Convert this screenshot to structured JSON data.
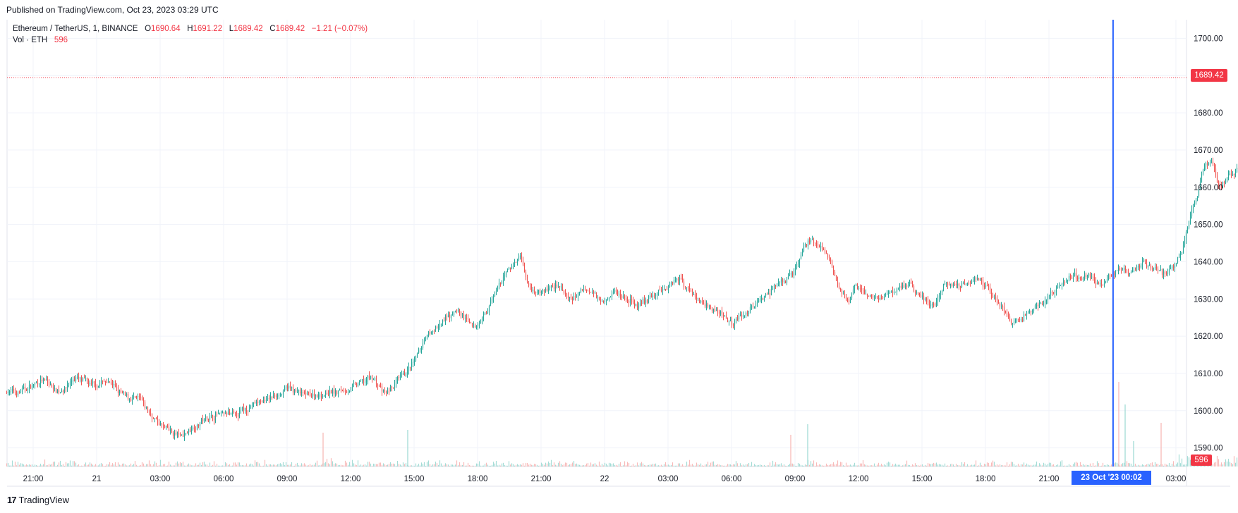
{
  "header": {
    "published": "Published on TradingView.com, Oct 23, 2023 03:29 UTC"
  },
  "legend": {
    "symbol": "Ethereum / TetherUS, 1, BINANCE",
    "open_label": "O",
    "open": "1690.64",
    "high_label": "H",
    "high": "1691.22",
    "low_label": "L",
    "low": "1689.42",
    "close_label": "C",
    "close": "1689.42",
    "change": "−1.21 (−0.07%)",
    "volume_label": "Vol · ETH",
    "volume": "596"
  },
  "price_label": "1689.42",
  "volume_label": "596",
  "crosshair_time_label": "23 Oct '23   00:02",
  "footer": {
    "brand": "TradingView",
    "mark": "17"
  },
  "colors": {
    "up": "#26a69a",
    "down": "#ef5350",
    "crosshair": "#2962ff",
    "last_price": "#f23645",
    "grid": "#f0f3fa"
  },
  "chart_data": {
    "type": "candlestick",
    "title": "Ethereum / TetherUS, 1, BINANCE",
    "ylim": [
      1585,
      1705
    ],
    "y_ticks": [
      1590,
      1600,
      1610,
      1620,
      1630,
      1640,
      1650,
      1660,
      1670,
      1680,
      1690,
      1700
    ],
    "y_tick_labels": [
      "1590.00",
      "1600.00",
      "1610.00",
      "1620.00",
      "1630.00",
      "1640.00",
      "1650.00",
      "1660.00",
      "1670.00",
      "1680.00",
      "1690.00",
      "1700.00"
    ],
    "x_tick_labels": [
      "21:00",
      "21",
      "03:00",
      "06:00",
      "09:00",
      "12:00",
      "15:00",
      "18:00",
      "21:00",
      "22",
      "03:00",
      "06:00",
      "09:00",
      "12:00",
      "15:00",
      "18:00",
      "21:00",
      "23 Oct '23",
      "03:00"
    ],
    "x_tick_hours": [
      0,
      3,
      6,
      9,
      12,
      15,
      18,
      21,
      24,
      27,
      30,
      33,
      36,
      39,
      42,
      45,
      48,
      51,
      54
    ],
    "time_span_hours": 55.1,
    "crosshair_hour": 51.03,
    "last_price": 1689.42,
    "price_path": [
      [
        -0.8,
        1605
      ],
      [
        0.5,
        1608
      ],
      [
        1.2,
        1605
      ],
      [
        2.0,
        1609
      ],
      [
        2.8,
        1607
      ],
      [
        3.5,
        1608
      ],
      [
        4.2,
        1604
      ],
      [
        5.0,
        1603
      ],
      [
        5.5,
        1599
      ],
      [
        6.0,
        1596
      ],
      [
        6.6,
        1594
      ],
      [
        7.0,
        1593
      ],
      [
        7.8,
        1597
      ],
      [
        8.6,
        1599
      ],
      [
        9.5,
        1599
      ],
      [
        10.2,
        1601
      ],
      [
        11.0,
        1603
      ],
      [
        12.0,
        1606
      ],
      [
        13.0,
        1604
      ],
      [
        14.2,
        1605
      ],
      [
        15.0,
        1606
      ],
      [
        15.5,
        1608
      ],
      [
        16.0,
        1609
      ],
      [
        16.6,
        1604
      ],
      [
        17.5,
        1610
      ],
      [
        18.0,
        1613
      ],
      [
        18.5,
        1620
      ],
      [
        19.2,
        1623
      ],
      [
        20.0,
        1627
      ],
      [
        20.8,
        1622
      ],
      [
        21.5,
        1628
      ],
      [
        22.3,
        1637
      ],
      [
        23.0,
        1642
      ],
      [
        23.4,
        1633
      ],
      [
        24.0,
        1632
      ],
      [
        24.8,
        1634
      ],
      [
        25.3,
        1629
      ],
      [
        26.0,
        1633
      ],
      [
        26.8,
        1630
      ],
      [
        27.5,
        1632
      ],
      [
        28.5,
        1628
      ],
      [
        29.0,
        1630
      ],
      [
        29.8,
        1633
      ],
      [
        30.5,
        1636
      ],
      [
        31.0,
        1632
      ],
      [
        31.8,
        1628
      ],
      [
        32.5,
        1626
      ],
      [
        33.0,
        1624
      ],
      [
        33.6,
        1626
      ],
      [
        34.3,
        1630
      ],
      [
        35.0,
        1633
      ],
      [
        35.5,
        1635
      ],
      [
        36.0,
        1638
      ],
      [
        36.4,
        1644
      ],
      [
        36.8,
        1646
      ],
      [
        37.2,
        1643
      ],
      [
        37.6,
        1640
      ],
      [
        38.0,
        1634
      ],
      [
        38.5,
        1628
      ],
      [
        38.8,
        1634
      ],
      [
        39.3,
        1631
      ],
      [
        40.0,
        1630
      ],
      [
        40.8,
        1633
      ],
      [
        41.5,
        1634
      ],
      [
        42.0,
        1630
      ],
      [
        42.6,
        1628
      ],
      [
        43.0,
        1634
      ],
      [
        43.8,
        1634
      ],
      [
        44.5,
        1636
      ],
      [
        45.2,
        1632
      ],
      [
        45.8,
        1627
      ],
      [
        46.3,
        1623
      ],
      [
        47.0,
        1626
      ],
      [
        47.8,
        1630
      ],
      [
        48.4,
        1633
      ],
      [
        49.0,
        1636
      ],
      [
        49.8,
        1636
      ],
      [
        50.5,
        1634
      ],
      [
        51.2,
        1638
      ],
      [
        51.8,
        1637
      ],
      [
        52.4,
        1640
      ],
      [
        53.0,
        1638
      ],
      [
        53.5,
        1636
      ],
      [
        54.0,
        1641
      ],
      [
        54.3,
        1644
      ],
      [
        54.7,
        1654
      ],
      [
        55.0,
        1659
      ],
      [
        55.3,
        1666
      ],
      [
        55.7,
        1667
      ],
      [
        56.0,
        1660
      ],
      [
        56.5,
        1663
      ],
      [
        57.0,
        1665
      ],
      [
        57.4,
        1662
      ],
      [
        57.7,
        1658
      ],
      [
        58.0,
        1667
      ],
      [
        58.4,
        1671
      ],
      [
        58.8,
        1675
      ],
      [
        59.1,
        1682
      ],
      [
        59.4,
        1676
      ],
      [
        59.8,
        1675
      ],
      [
        60.2,
        1679
      ],
      [
        60.6,
        1681
      ],
      [
        61.0,
        1683
      ],
      [
        61.3,
        1690
      ]
    ],
    "volume_spikes": [
      [
        13.7,
        48
      ],
      [
        17.7,
        52
      ],
      [
        35.8,
        45
      ],
      [
        36.6,
        60
      ],
      [
        51.3,
        120
      ],
      [
        51.6,
        88
      ],
      [
        53.3,
        62
      ],
      [
        52.0,
        36
      ],
      [
        57.5,
        55
      ],
      [
        58.4,
        40
      ],
      [
        58.6,
        55
      ],
      [
        60.4,
        30
      ],
      [
        61.2,
        38
      ]
    ]
  }
}
